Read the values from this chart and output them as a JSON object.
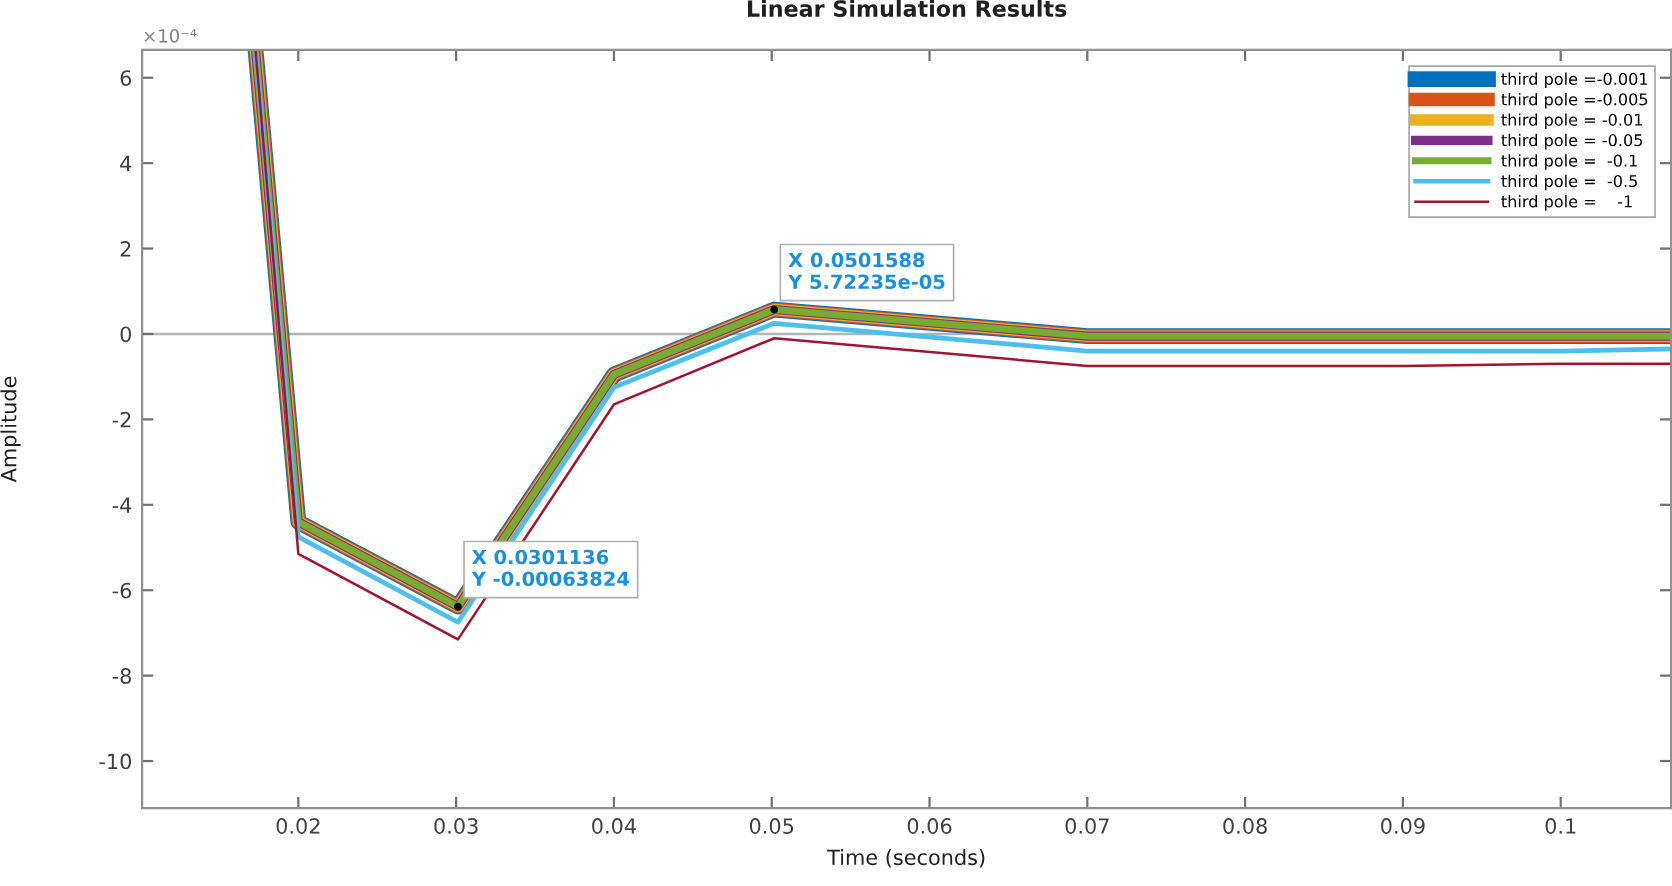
{
  "chart_data": {
    "type": "line",
    "title": "Linear Simulation Results",
    "xlabel": "Time (seconds)",
    "ylabel": "Amplitude",
    "x": [
      0.0173,
      0.02,
      0.0301136,
      0.04,
      0.0501588,
      0.07,
      0.08,
      0.09,
      0.1,
      0.107
    ],
    "series": [
      {
        "name": "third pole =-0.001",
        "color": "#0072bd",
        "values": [
          6.6,
          -4.4,
          -6.3824,
          -0.95,
          0.572235,
          -0.05,
          -0.05,
          -0.05,
          -0.05,
          -0.05
        ]
      },
      {
        "name": "third pole =-0.005",
        "color": "#d95319",
        "values": [
          6.6,
          -4.4,
          -6.3824,
          -0.95,
          0.572235,
          -0.05,
          -0.05,
          -0.05,
          -0.05,
          -0.05
        ]
      },
      {
        "name": "third pole = -0.01",
        "color": "#edb120",
        "values": [
          6.6,
          -4.4,
          -6.3824,
          -0.95,
          0.572235,
          -0.05,
          -0.05,
          -0.05,
          -0.05,
          -0.05
        ]
      },
      {
        "name": "third pole = -0.05",
        "color": "#7e2f8e",
        "values": [
          6.6,
          -4.4,
          -6.3824,
          -0.95,
          0.572235,
          -0.05,
          -0.05,
          -0.05,
          -0.05,
          -0.05
        ]
      },
      {
        "name": "third pole =  -0.1",
        "color": "#77ac30",
        "values": [
          6.6,
          -4.4,
          -6.3824,
          -0.95,
          0.572235,
          -0.05,
          -0.05,
          -0.05,
          -0.05,
          -0.05
        ]
      },
      {
        "name": "third pole =  -0.5",
        "color": "#4dbeee",
        "values": [
          6.6,
          -4.75,
          -6.75,
          -1.25,
          0.25,
          -0.4,
          -0.4,
          -0.4,
          -0.4,
          -0.35
        ]
      },
      {
        "name": "third pole =    -1",
        "color": "#a2142f",
        "values": [
          6.6,
          -5.15,
          -7.15,
          -1.65,
          -0.1,
          -0.75,
          -0.75,
          -0.75,
          -0.7,
          -0.7
        ]
      }
    ],
    "xlim": [
      0.0101,
      0.107
    ],
    "xticks": [
      0.02,
      0.03,
      0.04,
      0.05,
      0.06,
      0.07,
      0.08,
      0.09,
      0.1
    ],
    "ylim": [
      -11.1,
      6.65
    ],
    "yticks": [
      -10,
      -8,
      -6,
      -4,
      -2,
      0,
      2,
      4,
      6
    ],
    "ref_lines": [
      {
        "axis": "y",
        "value": 0,
        "color": "#b4b4b4"
      }
    ],
    "annotations": [
      "×10⁻⁴",
      {
        "text": "X 0.0301136\nY -0.00063824",
        "x": 0.0301136,
        "y": -6.3824
      },
      {
        "text": "X 0.0501588\nY 5.72235e-05",
        "x": 0.0501588,
        "y": 0.572235
      }
    ],
    "legend": "top right",
    "grid": false,
    "marker": "none",
    "line_style": "solid"
  }
}
